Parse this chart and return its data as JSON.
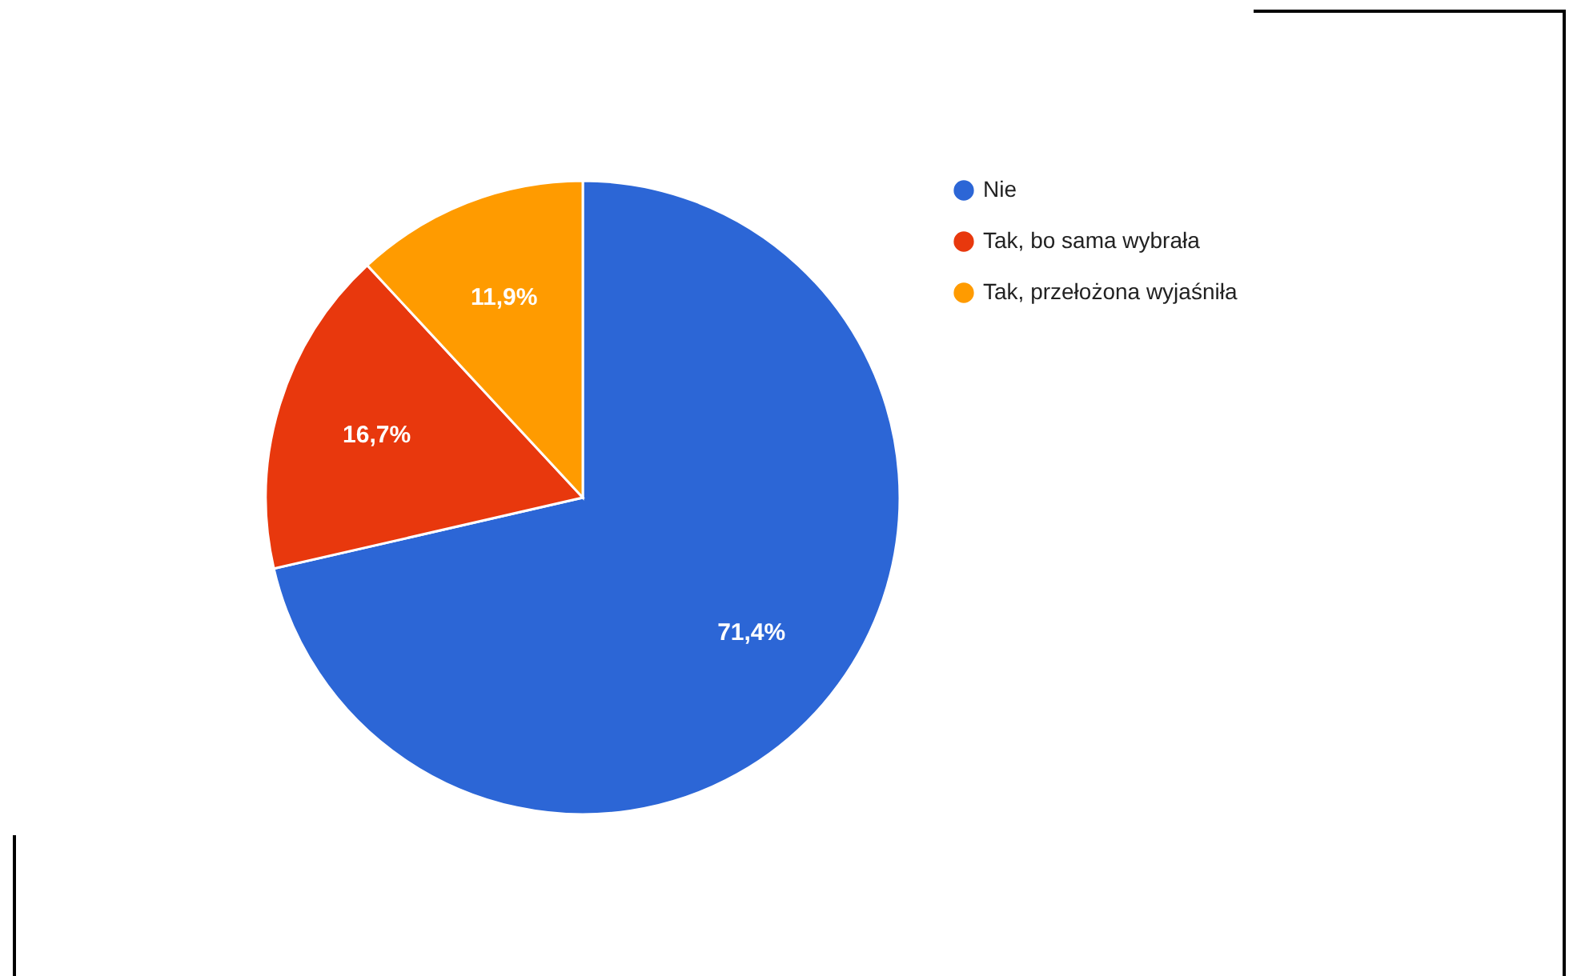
{
  "chart_data": {
    "type": "pie",
    "categories": [
      "Nie",
      "Tak, bo sama wybrała",
      "Tak, przełożona wyjaśniła"
    ],
    "values": [
      71.4,
      16.7,
      11.9
    ],
    "colors": [
      "#2c66d6",
      "#e8380d",
      "#ff9b00"
    ],
    "value_labels": [
      "71,4%",
      "16,7%",
      "11,9%"
    ],
    "legend": "right"
  }
}
